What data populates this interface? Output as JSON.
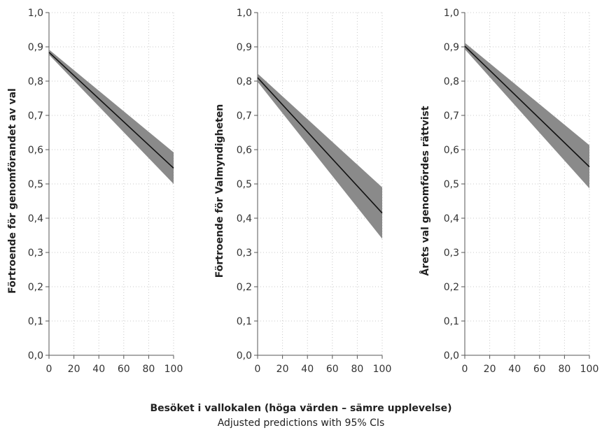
{
  "xlabel": "Besöket i vallokalen (höga värden – sämre upplevelse)",
  "caption": "Adjusted predictions with 95% CIs",
  "chart_data": [
    {
      "type": "line",
      "ylabel": "Förtroende för genomförandet av val",
      "x": [
        0,
        100
      ],
      "fit": [
        0.884,
        0.546
      ],
      "ci_low": [
        0.877,
        0.5
      ],
      "ci_high": [
        0.892,
        0.592
      ],
      "xlim": [
        0,
        100
      ],
      "ylim": [
        0,
        1
      ],
      "xticks": [
        "0",
        "20",
        "40",
        "60",
        "80",
        "100"
      ],
      "yticks": [
        "0,0",
        "0,1",
        "0,2",
        "0,3",
        "0,4",
        "0,5",
        "0,6",
        "0,7",
        "0,8",
        "0,9",
        "1,0"
      ],
      "grid": true
    },
    {
      "type": "line",
      "ylabel": "Förtroende för Valmyndigheten",
      "x": [
        0,
        100
      ],
      "fit": [
        0.81,
        0.415
      ],
      "ci_low": [
        0.798,
        0.34
      ],
      "ci_high": [
        0.822,
        0.49
      ],
      "xlim": [
        0,
        100
      ],
      "ylim": [
        0,
        1
      ],
      "xticks": [
        "0",
        "20",
        "40",
        "60",
        "80",
        "100"
      ],
      "yticks": [
        "0,0",
        "0,1",
        "0,2",
        "0,3",
        "0,4",
        "0,5",
        "0,6",
        "0,7",
        "0,8",
        "0,9",
        "1,0"
      ],
      "grid": true
    },
    {
      "type": "line",
      "ylabel": "Årets val genomfördes rättvist",
      "x": [
        0,
        100
      ],
      "fit": [
        0.902,
        0.55
      ],
      "ci_low": [
        0.893,
        0.487
      ],
      "ci_high": [
        0.912,
        0.613
      ],
      "xlim": [
        0,
        100
      ],
      "ylim": [
        0,
        1
      ],
      "xticks": [
        "0",
        "20",
        "40",
        "60",
        "80",
        "100"
      ],
      "yticks": [
        "0,0",
        "0,1",
        "0,2",
        "0,3",
        "0,4",
        "0,5",
        "0,6",
        "0,7",
        "0,8",
        "0,9",
        "1,0"
      ],
      "grid": true
    }
  ]
}
